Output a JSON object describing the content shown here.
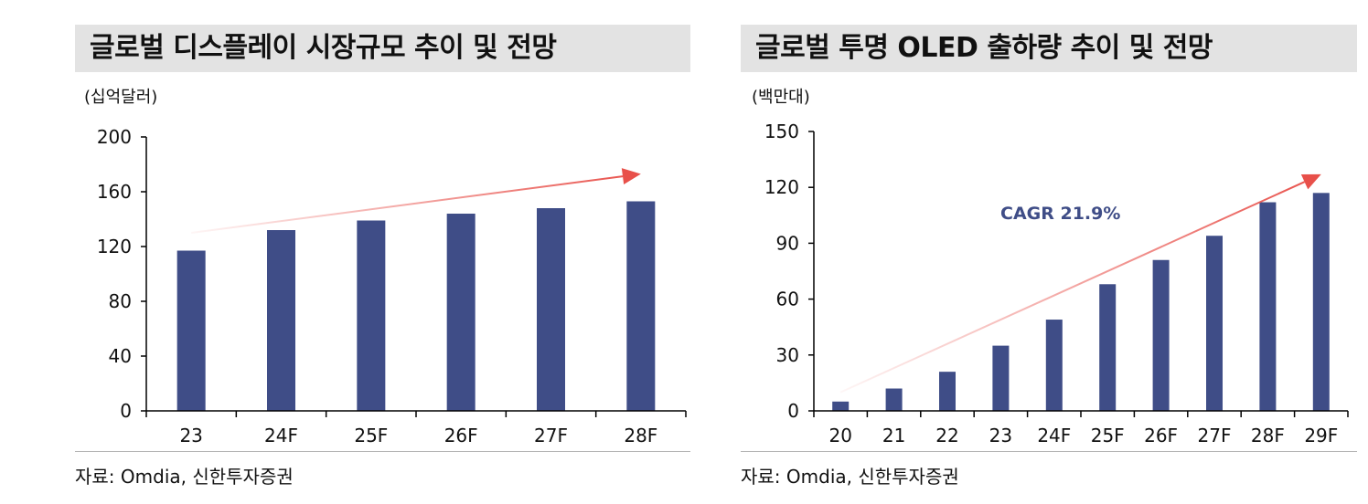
{
  "colors": {
    "bar": "#3f4d87",
    "arrow": "#e8504a",
    "title_bg": "#e3e3e3"
  },
  "chart_data": [
    {
      "type": "bar",
      "title": "글로벌 디스플레이 시장규모 추이 및 전망",
      "ylabel": "(십억달러)",
      "categories": [
        "23",
        "24F",
        "25F",
        "26F",
        "27F",
        "28F"
      ],
      "values": [
        117,
        132,
        139,
        144,
        148,
        153
      ],
      "yticks": [
        0,
        40,
        80,
        120,
        160,
        200
      ],
      "ylim": [
        0,
        200
      ],
      "trend_arrow": {
        "from": [
          "23",
          130
        ],
        "to": [
          "28F",
          173
        ]
      },
      "source": "자료: Omdia, 신한투자증권",
      "grid": false
    },
    {
      "type": "bar",
      "title": "글로벌 투명 OLED 출하량 추이 및 전망",
      "ylabel": "(백만대)",
      "categories": [
        "20",
        "21",
        "22",
        "23",
        "24F",
        "25F",
        "26F",
        "27F",
        "28F",
        "29F"
      ],
      "values": [
        5,
        12,
        21,
        35,
        49,
        68,
        81,
        94,
        112,
        117
      ],
      "yticks": [
        0,
        30,
        60,
        90,
        120,
        150
      ],
      "ylim": [
        0,
        150
      ],
      "annotation": "CAGR 21.9%",
      "trend_arrow": {
        "from": [
          "20",
          10
        ],
        "to": [
          "29F",
          127
        ]
      },
      "source": "자료: Omdia, 신한투자증권",
      "grid": false
    }
  ]
}
